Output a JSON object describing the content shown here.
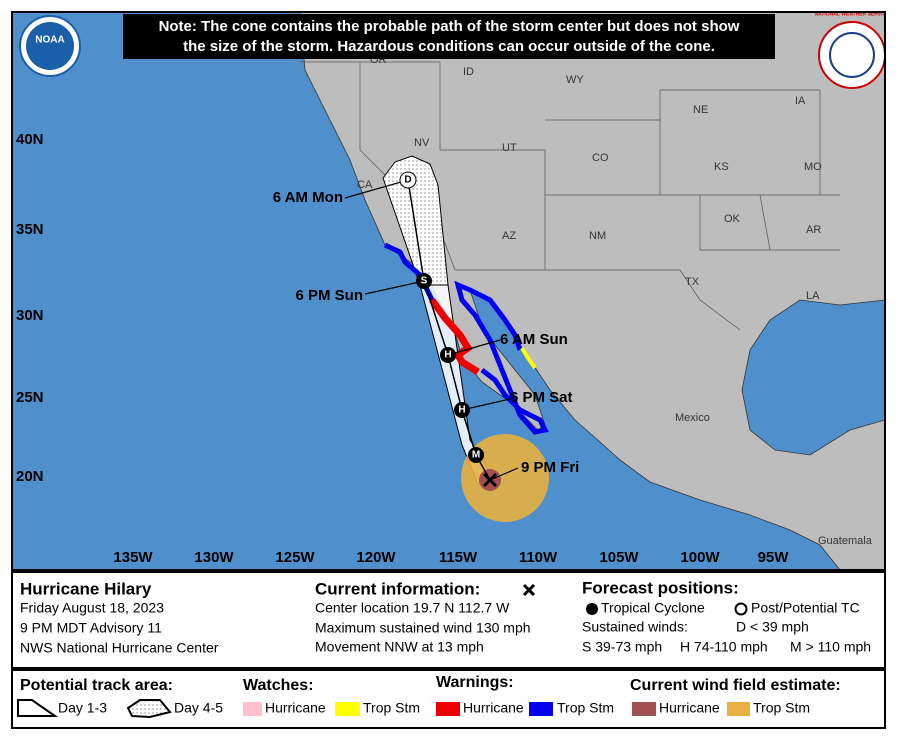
{
  "note": [
    "Note: The cone contains the probable path of the storm center but does not show",
    "the size of the storm. Hazardous conditions can occur outside of the cone."
  ],
  "logos": {
    "noaa": "NOAA",
    "nws": "NATIONAL WEATHER SERVICE"
  },
  "map": {
    "latitude_labels": [
      "40N",
      "35N",
      "30N",
      "25N",
      "20N"
    ],
    "longitude_labels": [
      "135W",
      "130W",
      "125W",
      "120W",
      "115W",
      "110W",
      "105W",
      "100W",
      "95W"
    ],
    "place_labels": [
      "OR",
      "ID",
      "WY",
      "NV",
      "UT",
      "CO",
      "NE",
      "IA",
      "KS",
      "MO",
      "CA",
      "AZ",
      "NM",
      "OK",
      "AR",
      "TX",
      "LA",
      "Mexico",
      "Guatemala"
    ],
    "track_markers": [
      "M",
      "H",
      "H",
      "S",
      "D"
    ],
    "time_labels": [
      "9 PM Fri",
      "6 PM Sat",
      "6 AM Sun",
      "6 PM Sun",
      "6 AM Mon"
    ]
  },
  "info": {
    "storm_name": "Hurricane Hilary",
    "date": "Friday August 18, 2023",
    "advisory": "9 PM MDT Advisory 11",
    "source": "NWS National Hurricane Center"
  },
  "current": {
    "heading": "Current information:",
    "center": "Center location 19.7 N 112.7 W",
    "wind": "Maximum sustained wind 130 mph",
    "movement": "Movement NNW at 13 mph"
  },
  "forecast_positions": {
    "heading": "Forecast positions:",
    "tropical": "Tropical Cyclone",
    "post": "Post/Potential TC",
    "winds_heading": "Sustained winds:",
    "d": "D < 39 mph",
    "s": "S 39-73 mph",
    "h": "H 74-110 mph",
    "m": "M > 110 mph"
  },
  "legend": {
    "track_area": "Potential track area:",
    "day13": "Day 1-3",
    "day45": "Day 4-5",
    "watches": "Watches:",
    "watch_items": [
      "Hurricane",
      "Trop Stm"
    ],
    "warnings": "Warnings:",
    "warning_items": [
      "Hurricane",
      "Trop Stm"
    ],
    "wind_field": "Current wind field estimate:",
    "wind_items": [
      "Hurricane",
      "Trop Stm"
    ]
  }
}
